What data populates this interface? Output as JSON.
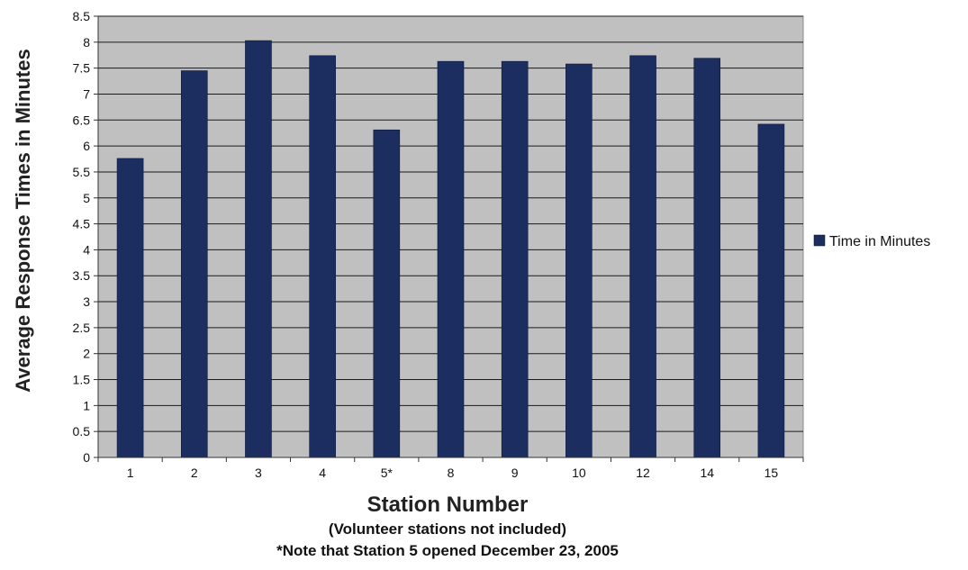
{
  "chart_data": {
    "type": "bar",
    "categories": [
      "1",
      "2",
      "3",
      "4",
      "5*",
      "8",
      "9",
      "10",
      "12",
      "14",
      "15"
    ],
    "series": [
      {
        "name": "Time in Minutes",
        "color": "#1c2e60",
        "values": [
          5.76,
          7.45,
          8.03,
          7.74,
          6.31,
          7.63,
          7.63,
          7.58,
          7.74,
          7.69,
          6.42
        ]
      }
    ],
    "ylabel": "Average Response Times in Minutes",
    "xlabel": "Station Number",
    "notes": [
      "(Volunteer stations not included)",
      "*Note that Station 5 opened December 23, 2005"
    ],
    "ylim": [
      0,
      8.5
    ],
    "yticks": [
      "0",
      "0.5",
      "1",
      "1.5",
      "2",
      "2.5",
      "3",
      "3.5",
      "4",
      "4.5",
      "5",
      "5.5",
      "6",
      "6.5",
      "7",
      "7.5",
      "8",
      "8.5"
    ],
    "grid": true,
    "plot_background": "#c0c0c0",
    "legend_position": "right"
  }
}
